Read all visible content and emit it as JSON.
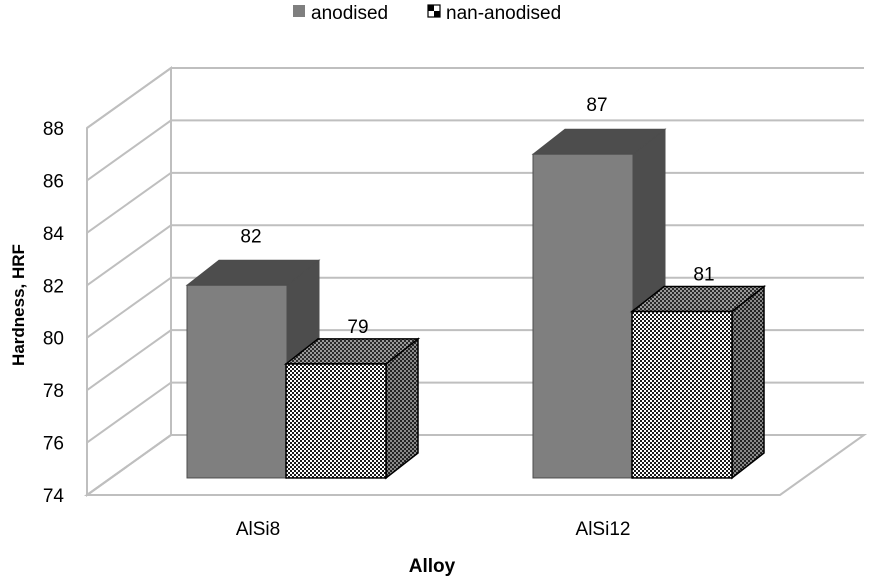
{
  "chart_data": {
    "type": "bar",
    "style": "3d-clustered",
    "title": "",
    "xlabel": "Alloy",
    "ylabel": "Hardness, HRF",
    "categories": [
      "AlSi8",
      "AlSi12"
    ],
    "series": [
      {
        "name": "anodised",
        "values": [
          82,
          87
        ],
        "color": "#7f7f7f",
        "pattern": "solid"
      },
      {
        "name": "nan-anodised",
        "values": [
          79,
          81
        ],
        "color": "#ffffff",
        "pattern": "checker"
      }
    ],
    "ylim": [
      74,
      88
    ],
    "yticks": [
      "74",
      "76",
      "78",
      "80",
      "82",
      "84",
      "86",
      "88"
    ],
    "data_labels": [
      "82",
      "79",
      "87",
      "81"
    ],
    "grid": true,
    "legend_position": "top-center"
  }
}
